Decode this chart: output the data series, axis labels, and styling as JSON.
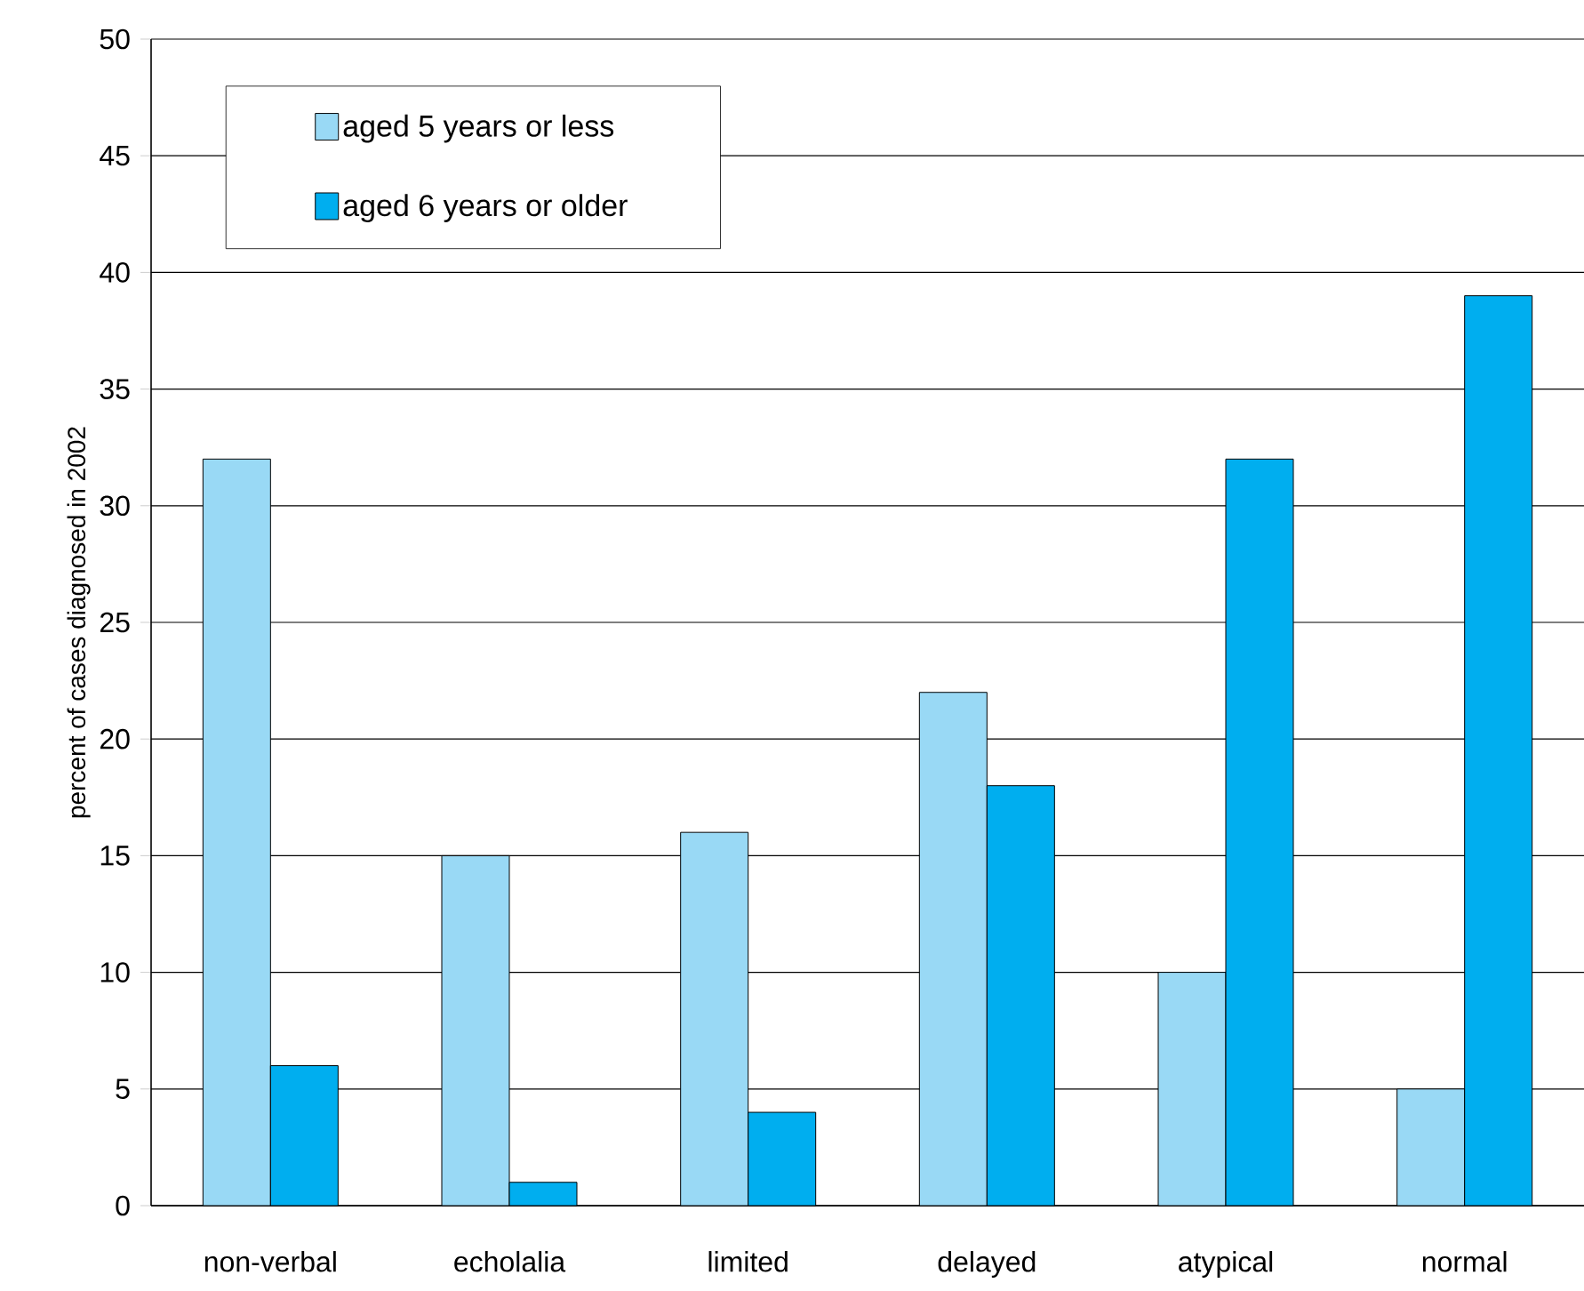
{
  "chart_data": {
    "type": "bar",
    "ylabel": "percent of cases diagnosed in 2002",
    "categories": [
      "non-verbal",
      "echolalia",
      "limited",
      "delayed",
      "atypical",
      "normal"
    ],
    "series": [
      {
        "name": "aged 5 years or less",
        "color": "#99d9f5",
        "values": [
          32,
          15,
          16,
          22,
          10,
          5
        ]
      },
      {
        "name": "aged 6 years or older",
        "color": "#00aeef",
        "values": [
          6,
          1,
          4,
          18,
          32,
          39
        ]
      }
    ],
    "ylim": [
      0,
      50
    ],
    "yticks": [
      0,
      5,
      10,
      15,
      20,
      25,
      30,
      35,
      40,
      45,
      50
    ],
    "grid": "y",
    "legend": "top left"
  }
}
